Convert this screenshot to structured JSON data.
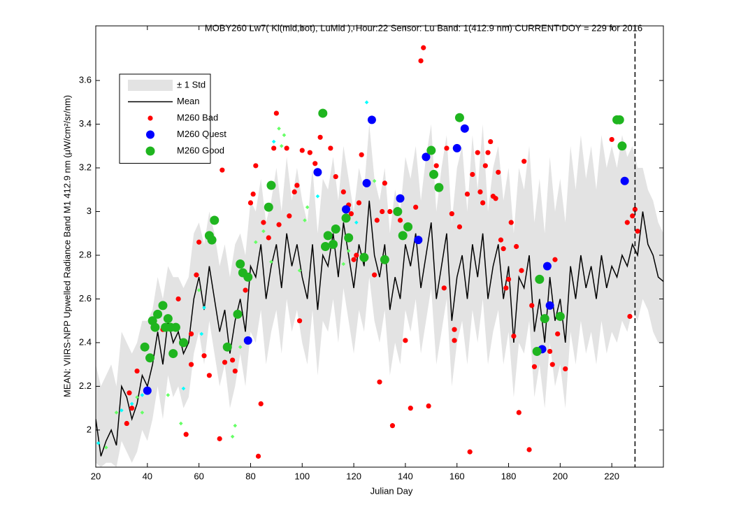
{
  "chart_data": {
    "type": "line",
    "title": "MOBY260   Lw7( Kl(mid,bot), LuMid ),   Hour:22 Sensor: Lu Band: 1(412.9 nm)   CURRENT DOY = 229 for 2016",
    "x_label": "Julian Day",
    "y_label": "MEAN: VIIRS-NPP Upwelled Radiance Band M1 412.9 nm (μW/cm²/sr/nm)",
    "xlim": [
      20,
      240
    ],
    "ylim": [
      1.83,
      3.85
    ],
    "xticks": [
      20,
      40,
      60,
      80,
      100,
      120,
      140,
      160,
      180,
      200,
      220
    ],
    "yticks": [
      2,
      2.2,
      2.4,
      2.6,
      2.8,
      3,
      3.2,
      3.4,
      3.6
    ],
    "vline_x": 229,
    "legend": "upper-left",
    "series": [
      {
        "name": "± 1 Std",
        "kind": "band",
        "color": "#e3e3e3",
        "x": [
          20,
          22,
          24,
          26,
          28,
          30,
          32,
          34,
          36,
          38,
          40,
          42,
          44,
          46,
          48,
          50,
          52,
          54,
          56,
          58,
          60,
          62,
          64,
          66,
          68,
          70,
          72,
          74,
          76,
          78,
          80,
          82,
          84,
          86,
          88,
          90,
          92,
          94,
          96,
          98,
          100,
          102,
          104,
          106,
          108,
          110,
          112,
          114,
          116,
          118,
          120,
          122,
          124,
          126,
          128,
          130,
          132,
          134,
          136,
          138,
          140,
          142,
          144,
          146,
          148,
          150,
          152,
          154,
          156,
          158,
          160,
          162,
          164,
          166,
          168,
          170,
          172,
          174,
          176,
          178,
          180,
          182,
          184,
          186,
          188,
          190,
          192,
          194,
          196,
          198,
          200,
          202,
          204,
          206,
          208,
          210,
          212,
          214,
          216,
          218,
          220,
          222,
          224,
          226,
          228,
          230,
          232,
          234,
          236,
          238,
          240
        ],
        "values": [
          2.3,
          2.2,
          2.25,
          2.3,
          2.2,
          2.45,
          2.4,
          2.35,
          2.4,
          2.5,
          2.5,
          2.55,
          2.7,
          2.6,
          2.75,
          2.7,
          2.7,
          2.65,
          2.7,
          2.9,
          2.95,
          2.85,
          3.0,
          2.9,
          2.75,
          2.85,
          2.7,
          2.85,
          2.9,
          2.8,
          3.05,
          3.0,
          3.15,
          2.95,
          3.05,
          3.2,
          3.0,
          3.25,
          3.05,
          3.2,
          3.05,
          2.95,
          3.2,
          2.9,
          3.15,
          3.1,
          3.25,
          3.05,
          3.3,
          3.15,
          3.0,
          3.2,
          3.1,
          3.4,
          3.15,
          3.05,
          3.2,
          2.9,
          3.1,
          3.0,
          3.25,
          3.15,
          3.3,
          3.05,
          3.25,
          3.4,
          3.0,
          3.2,
          3.35,
          2.95,
          3.2,
          3.3,
          3.0,
          3.35,
          3.1,
          3.4,
          3.0,
          3.2,
          3.3,
          3.05,
          3.2,
          2.9,
          3.2,
          3.1,
          3.3,
          2.95,
          3.15,
          2.9,
          3.25,
          3.0,
          3.15,
          2.95,
          3.3,
          3.1,
          3.35,
          3.15,
          3.3,
          3.1,
          3.35,
          3.2,
          3.3,
          3.2,
          3.35,
          3.25,
          3.3,
          3.2,
          3.2,
          3.1,
          3.05,
          2.95,
          2.9
        ],
        "lower": [
          1.85,
          1.83,
          1.85,
          1.85,
          1.83,
          1.95,
          1.9,
          1.85,
          1.9,
          2.0,
          1.95,
          2.05,
          2.2,
          2.05,
          2.25,
          2.15,
          2.2,
          2.1,
          2.15,
          2.35,
          2.45,
          2.3,
          2.5,
          2.35,
          2.2,
          2.3,
          2.1,
          2.2,
          2.35,
          2.2,
          2.45,
          2.4,
          2.55,
          2.3,
          2.45,
          2.55,
          2.35,
          2.6,
          2.45,
          2.55,
          2.4,
          2.3,
          2.55,
          2.25,
          2.5,
          2.45,
          2.6,
          2.4,
          2.65,
          2.5,
          2.35,
          2.55,
          2.45,
          2.7,
          2.5,
          2.4,
          2.55,
          2.25,
          2.4,
          2.3,
          2.55,
          2.45,
          2.6,
          2.35,
          2.5,
          2.65,
          2.3,
          2.45,
          2.6,
          2.2,
          2.4,
          2.5,
          2.3,
          2.55,
          2.4,
          2.6,
          2.3,
          2.45,
          2.55,
          2.3,
          2.45,
          2.15,
          2.4,
          2.35,
          2.5,
          2.15,
          2.3,
          2.1,
          2.4,
          2.2,
          2.3,
          2.1,
          2.45,
          2.3,
          2.5,
          2.35,
          2.45,
          2.3,
          2.5,
          2.35,
          2.45,
          2.4,
          2.5,
          2.45,
          2.55,
          2.5,
          2.6,
          2.55,
          2.45,
          2.4,
          2.4
        ]
      },
      {
        "name": "Mean",
        "kind": "line",
        "color": "#000000",
        "x": [
          20,
          22,
          24,
          26,
          28,
          30,
          32,
          34,
          36,
          38,
          40,
          42,
          44,
          46,
          48,
          50,
          52,
          54,
          56,
          58,
          60,
          62,
          64,
          66,
          68,
          70,
          72,
          74,
          76,
          78,
          80,
          82,
          84,
          86,
          88,
          90,
          92,
          94,
          96,
          98,
          100,
          102,
          104,
          106,
          108,
          110,
          112,
          114,
          116,
          118,
          120,
          122,
          124,
          126,
          128,
          130,
          132,
          134,
          136,
          138,
          140,
          142,
          144,
          146,
          148,
          150,
          152,
          154,
          156,
          158,
          160,
          162,
          164,
          166,
          168,
          170,
          172,
          174,
          176,
          178,
          180,
          182,
          184,
          186,
          188,
          190,
          192,
          194,
          196,
          198,
          200,
          202,
          204,
          206,
          208,
          210,
          212,
          214,
          216,
          218,
          220,
          222,
          224,
          226,
          228,
          230,
          232,
          234,
          236,
          238,
          240
        ],
        "values": [
          2.05,
          1.88,
          1.95,
          2.0,
          1.93,
          2.2,
          2.15,
          2.05,
          2.12,
          2.25,
          2.2,
          2.3,
          2.45,
          2.3,
          2.5,
          2.4,
          2.45,
          2.35,
          2.4,
          2.6,
          2.7,
          2.55,
          2.75,
          2.6,
          2.45,
          2.55,
          2.35,
          2.5,
          2.6,
          2.45,
          2.75,
          2.7,
          2.85,
          2.6,
          2.75,
          2.85,
          2.65,
          2.9,
          2.75,
          2.85,
          2.7,
          2.6,
          2.85,
          2.55,
          2.8,
          2.75,
          2.9,
          2.7,
          2.95,
          2.8,
          2.65,
          2.85,
          2.75,
          3.05,
          2.8,
          2.7,
          2.85,
          2.55,
          2.7,
          2.6,
          2.85,
          2.75,
          2.9,
          2.65,
          2.8,
          2.95,
          2.6,
          2.75,
          2.9,
          2.5,
          2.7,
          2.8,
          2.6,
          2.85,
          2.7,
          2.9,
          2.6,
          2.75,
          2.85,
          2.6,
          2.75,
          2.4,
          2.7,
          2.65,
          2.8,
          2.45,
          2.6,
          2.4,
          2.7,
          2.5,
          2.6,
          2.4,
          2.75,
          2.6,
          2.8,
          2.65,
          2.75,
          2.6,
          2.8,
          2.65,
          2.75,
          2.7,
          2.8,
          2.75,
          2.85,
          2.8,
          3.0,
          2.85,
          2.8,
          2.7,
          2.68
        ]
      },
      {
        "name": "M260 Bad",
        "kind": "dot",
        "color": "#ff0000",
        "x": [
          33,
          32,
          34,
          36,
          46,
          52,
          55,
          57,
          57,
          59,
          60,
          62,
          64,
          68,
          69,
          70,
          73,
          74,
          78,
          80,
          81,
          82,
          83,
          84,
          85,
          87,
          89,
          90,
          91,
          94,
          95,
          97,
          98,
          99,
          100,
          103,
          105,
          107,
          111,
          113,
          116,
          118,
          119,
          120,
          121,
          122,
          123,
          128,
          129,
          130,
          131,
          132,
          134,
          135,
          138,
          140,
          142,
          144,
          146,
          147,
          149,
          152,
          155,
          156,
          158,
          159,
          159,
          161,
          164,
          165,
          166,
          168,
          169,
          170,
          171,
          172,
          173,
          174,
          175,
          176,
          177,
          178,
          179,
          180,
          181,
          182,
          183,
          184,
          185,
          186,
          188,
          189,
          190,
          196,
          197,
          198,
          199,
          202,
          220,
          226,
          227,
          228,
          229,
          230
        ],
        "values": [
          2.17,
          2.03,
          2.1,
          2.27,
          2.46,
          2.6,
          1.98,
          2.44,
          2.3,
          2.71,
          2.86,
          2.34,
          2.25,
          1.96,
          3.19,
          2.31,
          2.32,
          2.27,
          2.64,
          3.04,
          3.08,
          3.21,
          1.88,
          2.12,
          2.95,
          2.88,
          3.29,
          3.45,
          2.94,
          3.29,
          2.98,
          3.09,
          3.12,
          2.5,
          3.28,
          3.27,
          3.22,
          3.34,
          3.29,
          3.16,
          3.09,
          3.03,
          2.99,
          2.78,
          2.8,
          3.04,
          3.26,
          2.71,
          2.96,
          2.22,
          3.0,
          3.13,
          3.0,
          2.02,
          2.96,
          2.41,
          2.1,
          3.02,
          3.69,
          3.75,
          2.11,
          3.21,
          2.65,
          3.29,
          2.99,
          2.41,
          2.46,
          2.93,
          3.08,
          1.9,
          3.17,
          3.27,
          3.09,
          3.04,
          3.21,
          3.27,
          3.32,
          3.07,
          3.06,
          3.18,
          2.87,
          2.83,
          2.65,
          2.69,
          2.95,
          2.43,
          2.84,
          2.08,
          2.73,
          3.23,
          1.91,
          2.57,
          2.29,
          2.36,
          2.3,
          2.78,
          2.44,
          2.28,
          3.33,
          2.95,
          2.52,
          2.98,
          3.01,
          2.91
        ]
      },
      {
        "name": "M260 Quest",
        "kind": "dot",
        "color": "#0000ff",
        "x": [
          40,
          79,
          106,
          117,
          125,
          127,
          138,
          145,
          148,
          160,
          163,
          193,
          195,
          196,
          225
        ],
        "values": [
          2.18,
          2.41,
          3.18,
          3.01,
          3.13,
          3.42,
          3.06,
          2.87,
          3.25,
          3.29,
          3.38,
          2.37,
          2.75,
          2.57,
          3.14
        ]
      },
      {
        "name": "M260 Good",
        "kind": "dot",
        "color": "#1fb51f",
        "x": [
          39,
          41,
          42,
          43,
          44,
          46,
          47,
          48,
          49,
          50,
          51,
          54,
          64,
          65,
          66,
          71,
          75,
          76,
          77,
          79,
          87,
          88,
          108,
          109,
          110,
          112,
          113,
          117,
          118,
          124,
          132,
          137,
          139,
          141,
          150,
          151,
          153,
          161,
          191,
          192,
          194,
          200,
          222,
          223,
          224
        ],
        "values": [
          2.38,
          2.33,
          2.5,
          2.47,
          2.53,
          2.57,
          2.47,
          2.51,
          2.47,
          2.35,
          2.47,
          2.4,
          2.89,
          2.87,
          2.96,
          2.38,
          2.53,
          2.76,
          2.72,
          2.7,
          3.02,
          3.12,
          3.45,
          2.84,
          2.89,
          2.85,
          2.92,
          2.97,
          2.88,
          2.79,
          2.78,
          3.0,
          2.89,
          2.93,
          3.28,
          3.17,
          3.11,
          3.43,
          2.36,
          2.69,
          2.51,
          2.52,
          3.42,
          3.42,
          3.3
        ]
      },
      {
        "kind": "diamond",
        "color": "#66ff66",
        "x": [
          24,
          28,
          36,
          38,
          48,
          53,
          60,
          73,
          74,
          76,
          82,
          85,
          88,
          91,
          92,
          93,
          99,
          101,
          102,
          116,
          118,
          128
        ],
        "values": [
          1.92,
          2.08,
          2.15,
          2.08,
          2.16,
          2.03,
          2.64,
          1.97,
          2.02,
          2.38,
          2.86,
          2.91,
          2.77,
          3.38,
          3.3,
          3.35,
          2.73,
          2.96,
          3.02,
          2.76,
          2.82,
          3.14
        ]
      },
      {
        "kind": "diamond",
        "color": "#00ffff",
        "x": [
          21,
          30,
          34,
          38,
          54,
          61,
          62,
          89,
          106,
          121,
          125
        ],
        "values": [
          1.94,
          2.09,
          2.12,
          2.16,
          2.19,
          2.44,
          2.56,
          3.32,
          3.07,
          2.95,
          3.5
        ]
      }
    ]
  }
}
